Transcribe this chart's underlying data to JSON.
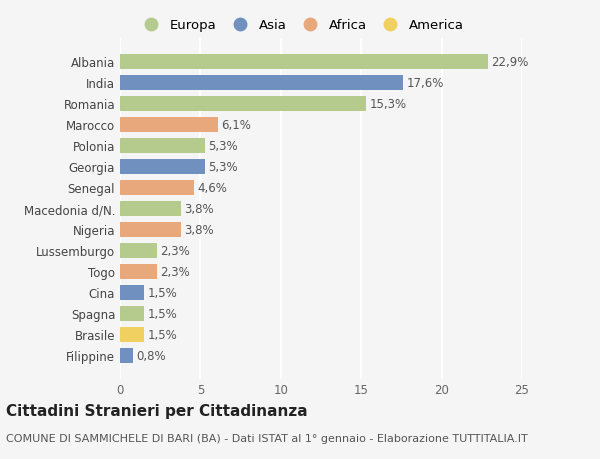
{
  "countries": [
    "Albania",
    "India",
    "Romania",
    "Marocco",
    "Polonia",
    "Georgia",
    "Senegal",
    "Macedonia d/N.",
    "Nigeria",
    "Lussemburgo",
    "Togo",
    "Cina",
    "Spagna",
    "Brasile",
    "Filippine"
  ],
  "values": [
    22.9,
    17.6,
    15.3,
    6.1,
    5.3,
    5.3,
    4.6,
    3.8,
    3.8,
    2.3,
    2.3,
    1.5,
    1.5,
    1.5,
    0.8
  ],
  "labels": [
    "22,9%",
    "17,6%",
    "15,3%",
    "6,1%",
    "5,3%",
    "5,3%",
    "4,6%",
    "3,8%",
    "3,8%",
    "2,3%",
    "2,3%",
    "1,5%",
    "1,5%",
    "1,5%",
    "0,8%"
  ],
  "continents": [
    "Europa",
    "Asia",
    "Europa",
    "Africa",
    "Europa",
    "Asia",
    "Africa",
    "Europa",
    "Africa",
    "Europa",
    "Africa",
    "Asia",
    "Europa",
    "America",
    "Asia"
  ],
  "continent_colors": {
    "Europa": "#b5cb8e",
    "Asia": "#7090c0",
    "Africa": "#e8a87c",
    "America": "#f0d060"
  },
  "legend_order": [
    "Europa",
    "Asia",
    "Africa",
    "America"
  ],
  "xlim": [
    0,
    25
  ],
  "xticks": [
    0,
    5,
    10,
    15,
    20,
    25
  ],
  "title": "Cittadini Stranieri per Cittadinanza",
  "subtitle": "COMUNE DI SAMMICHELE DI BARI (BA) - Dati ISTAT al 1° gennaio - Elaborazione TUTTITALIA.IT",
  "background_color": "#f5f5f5",
  "grid_color": "#ffffff",
  "bar_height": 0.72,
  "label_fontsize": 8.5,
  "tick_fontsize": 8.5,
  "title_fontsize": 11,
  "subtitle_fontsize": 8
}
